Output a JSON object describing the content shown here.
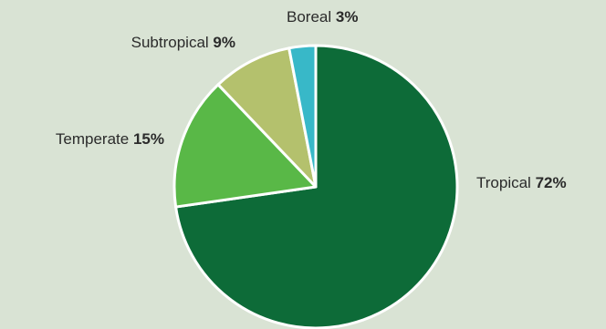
{
  "chart_data": {
    "type": "pie",
    "start": "12 o'clock",
    "direction": "clockwise",
    "slices": [
      {
        "label": "Tropical",
        "value": 72,
        "value_label": "72%",
        "color": "#0d6b38"
      },
      {
        "label": "Temperate",
        "value": 15,
        "value_label": "15%",
        "color": "#59b847"
      },
      {
        "label": "Subtropical",
        "value": 9,
        "value_label": "9%",
        "color": "#b4c16d"
      },
      {
        "label": "Boreal",
        "value": 3,
        "value_label": "3%",
        "color": "#38b8c8"
      }
    ]
  }
}
